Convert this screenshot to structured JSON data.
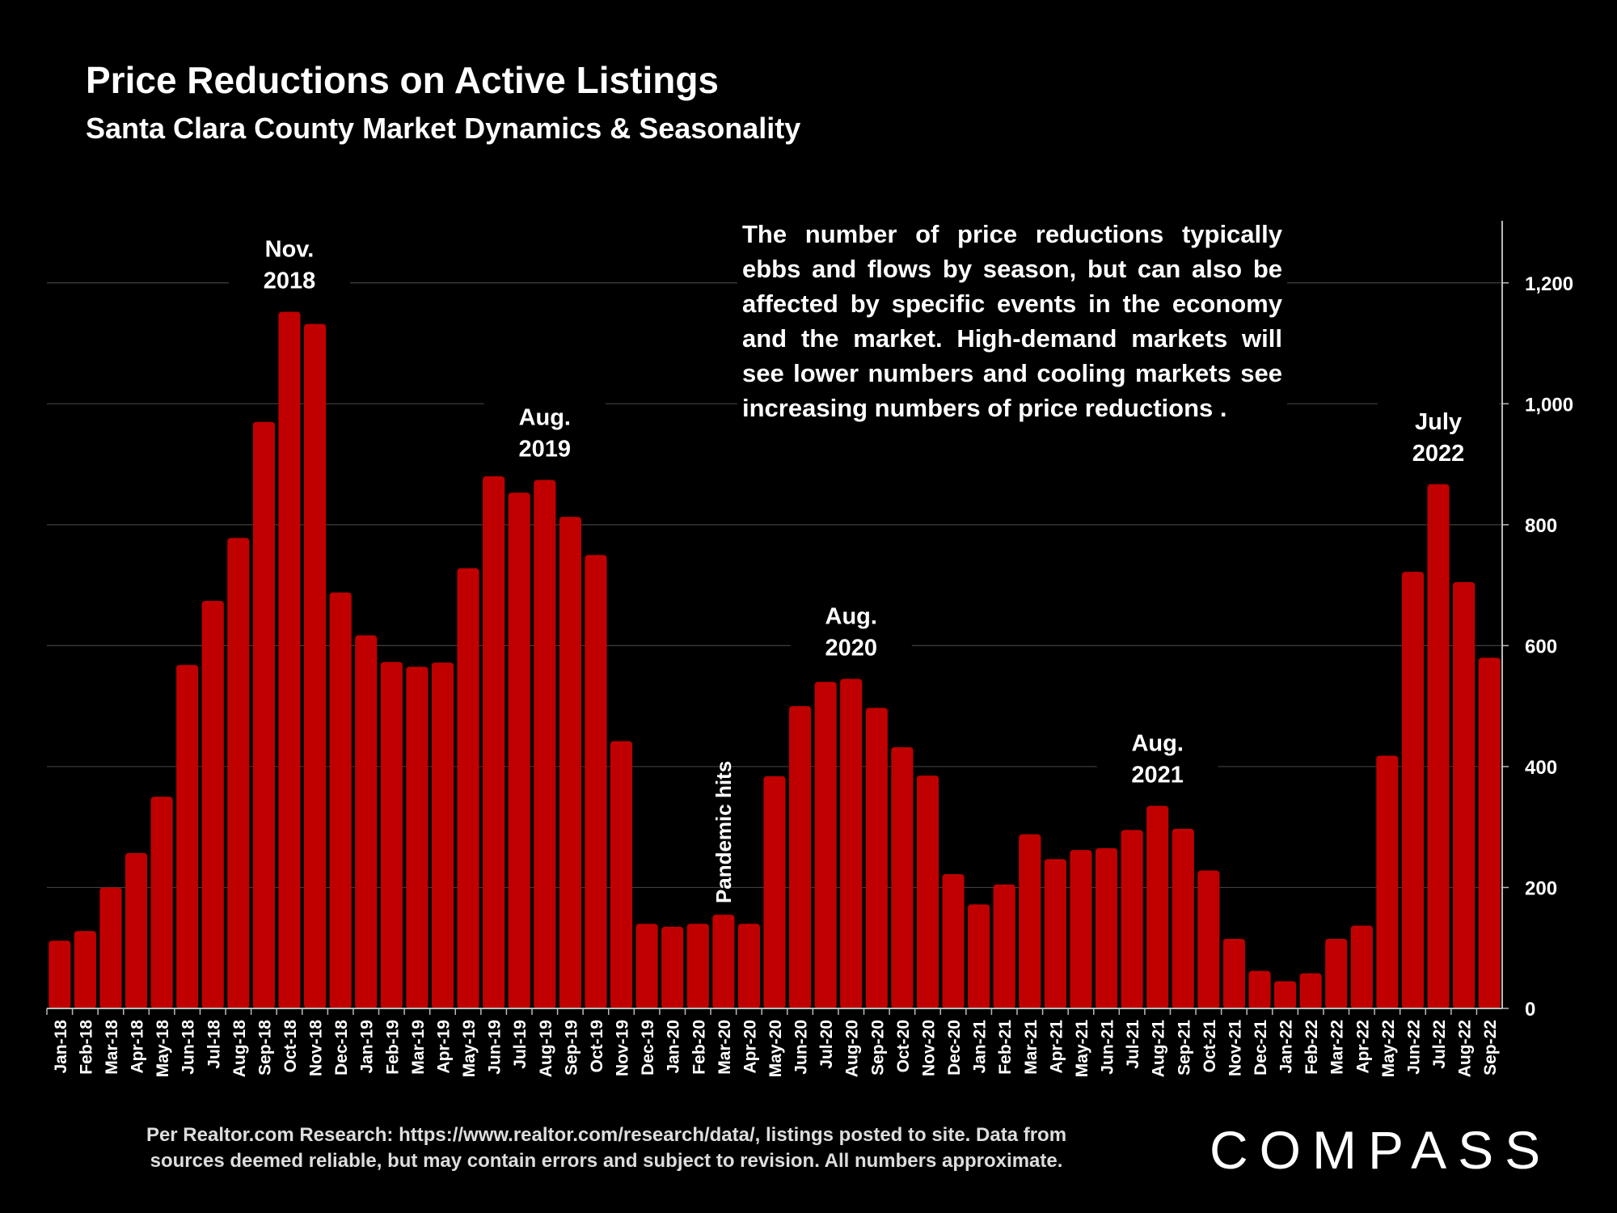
{
  "header": {
    "title": "Price Reductions on Active Listings",
    "subtitle": "Santa Clara County Market Dynamics & Seasonality"
  },
  "note": "The number of price reductions typically ebbs and flows by season, but can also be affected by specific events in the economy and the market. High-demand markets will see lower numbers and cooling markets see increasing numbers of price reductions .",
  "footer": {
    "line1": "Per Realtor.com Research:  https://www.realtor.com/research/data/, listings posted to site. Data from",
    "line2": "sources deemed reliable, but may contain errors and subject to revision. All numbers approximate."
  },
  "logo": {
    "text": "COMPASS"
  },
  "colors": {
    "bar": "#c00000",
    "background": "#000000",
    "grid": "#404040",
    "text": "#ffffff"
  },
  "chart_data": {
    "type": "bar",
    "title": "Price Reductions on Active Listings",
    "subtitle": "Santa Clara County Market Dynamics & Seasonality",
    "xlabel": "",
    "ylabel": "",
    "ylim": [
      0,
      1300
    ],
    "yticks": [
      0,
      200,
      400,
      600,
      800,
      1000,
      1200
    ],
    "ytick_labels": [
      "0",
      "200",
      "400",
      "600",
      "800",
      "1,000",
      "1,200"
    ],
    "y_axis_side": "right",
    "grid": true,
    "categories": [
      "Jan-18",
      "Feb-18",
      "Mar-18",
      "Apr-18",
      "May-18",
      "Jun-18",
      "Jul-18",
      "Aug-18",
      "Sep-18",
      "Oct-18",
      "Nov-18",
      "Dec-18",
      "Jan-19",
      "Feb-19",
      "Mar-19",
      "Apr-19",
      "May-19",
      "Jun-19",
      "Jul-19",
      "Aug-19",
      "Sep-19",
      "Oct-19",
      "Nov-19",
      "Dec-19",
      "Jan-20",
      "Feb-20",
      "Mar-20",
      "Apr-20",
      "May-20",
      "Jun-20",
      "Jul-20",
      "Aug-20",
      "Sep-20",
      "Oct-20",
      "Nov-20",
      "Dec-20",
      "Jan-21",
      "Feb-21",
      "Mar-21",
      "Apr-21",
      "May-21",
      "Jun-21",
      "Jul-21",
      "Aug-21",
      "Sep-21",
      "Oct-21",
      "Nov-21",
      "Dec-21",
      "Jan-22",
      "Feb-22",
      "Mar-22",
      "Apr-22",
      "May-22",
      "Jun-22",
      "Jul-22",
      "Aug-22",
      "Sep-22"
    ],
    "values": [
      112,
      128,
      200,
      257,
      350,
      568,
      674,
      778,
      970,
      1152,
      1132,
      688,
      617,
      573,
      565,
      572,
      728,
      880,
      853,
      874,
      813,
      750,
      442,
      140,
      135,
      140,
      155,
      140,
      384,
      500,
      540,
      545,
      497,
      432,
      385,
      222,
      172,
      205,
      288,
      247,
      262,
      265,
      295,
      335,
      297,
      228,
      115,
      62,
      45,
      58,
      115,
      137,
      418,
      722,
      867,
      705,
      580
    ],
    "annotations": [
      {
        "text_lines": [
          "Nov.",
          "2018"
        ],
        "category": "Oct-18"
      },
      {
        "text_lines": [
          "Aug.",
          "2019"
        ],
        "category": "Aug-19"
      },
      {
        "text_lines": [
          "Aug.",
          "2020"
        ],
        "category": "Aug-20"
      },
      {
        "text_lines": [
          "Aug.",
          "2021"
        ],
        "category": "Aug-21"
      },
      {
        "text_lines": [
          "July",
          "2022"
        ],
        "category": "Jul-22"
      },
      {
        "text_lines": [
          "Pandemic hits"
        ],
        "category": "Mar-20",
        "rotated": true
      }
    ]
  }
}
